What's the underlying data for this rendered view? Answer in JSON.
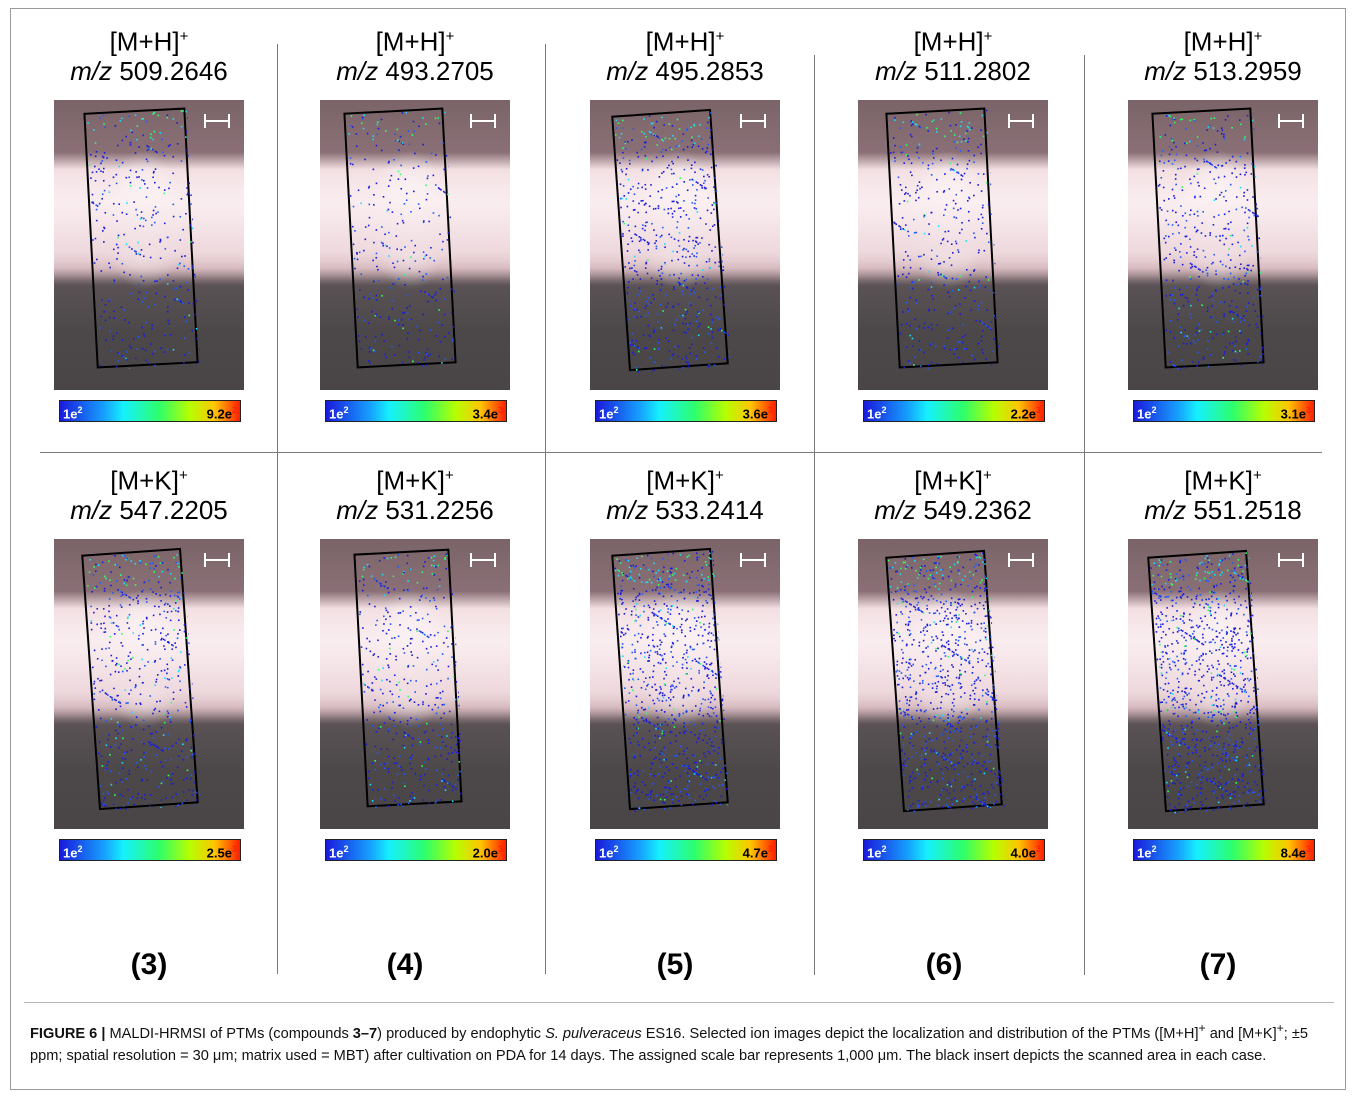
{
  "panels": [
    {
      "adduct": "[M+H]",
      "charge": "+",
      "mz_label": "m/z",
      "mz": "509.2646",
      "cbar_lo": "1e",
      "cbar_lo_exp": "2",
      "cbar_hi": "9.2e",
      "cbar_hi_exp": "2",
      "density": 0.25
    },
    {
      "adduct": "[M+H]",
      "charge": "+",
      "mz_label": "m/z",
      "mz": "493.2705",
      "cbar_lo": "1e",
      "cbar_lo_exp": "2",
      "cbar_hi": "3.4e",
      "cbar_hi_exp": "3",
      "density": 0.2
    },
    {
      "adduct": "[M+H]",
      "charge": "+",
      "mz_label": "m/z",
      "mz": "495.2853",
      "cbar_lo": "1e",
      "cbar_lo_exp": "2",
      "cbar_hi": "3.6e",
      "cbar_hi_exp": "3",
      "density": 0.5
    },
    {
      "adduct": "[M+H]",
      "charge": "+",
      "mz_label": "m/z",
      "mz": "511.2802",
      "cbar_lo": "1e",
      "cbar_lo_exp": "2",
      "cbar_hi": "2.2e",
      "cbar_hi_exp": "3",
      "density": 0.3
    },
    {
      "adduct": "[M+H]",
      "charge": "+",
      "mz_label": "m/z",
      "mz": "513.2959",
      "cbar_lo": "1e",
      "cbar_lo_exp": "2",
      "cbar_hi": "3.1e",
      "cbar_hi_exp": "3",
      "density": 0.4
    },
    {
      "adduct": "[M+K]",
      "charge": "+",
      "mz_label": "m/z",
      "mz": "547.2205",
      "cbar_lo": "1e",
      "cbar_lo_exp": "2",
      "cbar_hi": "2.5e",
      "cbar_hi_exp": "3",
      "density": 0.45
    },
    {
      "adduct": "[M+K]",
      "charge": "+",
      "mz_label": "m/z",
      "mz": "531.2256",
      "cbar_lo": "1e",
      "cbar_lo_exp": "2",
      "cbar_hi": "2.0e",
      "cbar_hi_exp": "3",
      "density": 0.35
    },
    {
      "adduct": "[M+K]",
      "charge": "+",
      "mz_label": "m/z",
      "mz": "533.2414",
      "cbar_lo": "1e",
      "cbar_lo_exp": "2",
      "cbar_hi": "4.7e",
      "cbar_hi_exp": "3",
      "density": 0.8
    },
    {
      "adduct": "[M+K]",
      "charge": "+",
      "mz_label": "m/z",
      "mz": "549.2362",
      "cbar_lo": "1e",
      "cbar_lo_exp": "2",
      "cbar_hi": "4.0e",
      "cbar_hi_exp": "3",
      "density": 0.85
    },
    {
      "adduct": "[M+K]",
      "charge": "+",
      "mz_label": "m/z",
      "mz": "551.2518",
      "cbar_lo": "1e",
      "cbar_lo_exp": "2",
      "cbar_hi": "8.4e",
      "cbar_hi_exp": "3",
      "density": 0.95
    }
  ],
  "compounds": [
    "(3)",
    "(4)",
    "(5)",
    "(6)",
    "(7)"
  ],
  "caption": {
    "label": "FIGURE 6 |",
    "t1": " MALDI-HRMSI of PTMs (compounds ",
    "compounds": "3–7",
    "t2": ") produced by endophytic ",
    "species": "S. pulveraceus",
    "t3": " ES16. Selected ion images depict the localization and distribution of the PTMs ([M+H]",
    "sup1": "+",
    "t4": " and [M+K]",
    "sup2": "+",
    "t5": "; ±5 ppm; spatial resolution = 30 μm; matrix used = MBT) after cultivation on PDA for 14 days. The assigned scale bar represents 1,000 μm. The black insert depicts the scanned area in each case."
  }
}
